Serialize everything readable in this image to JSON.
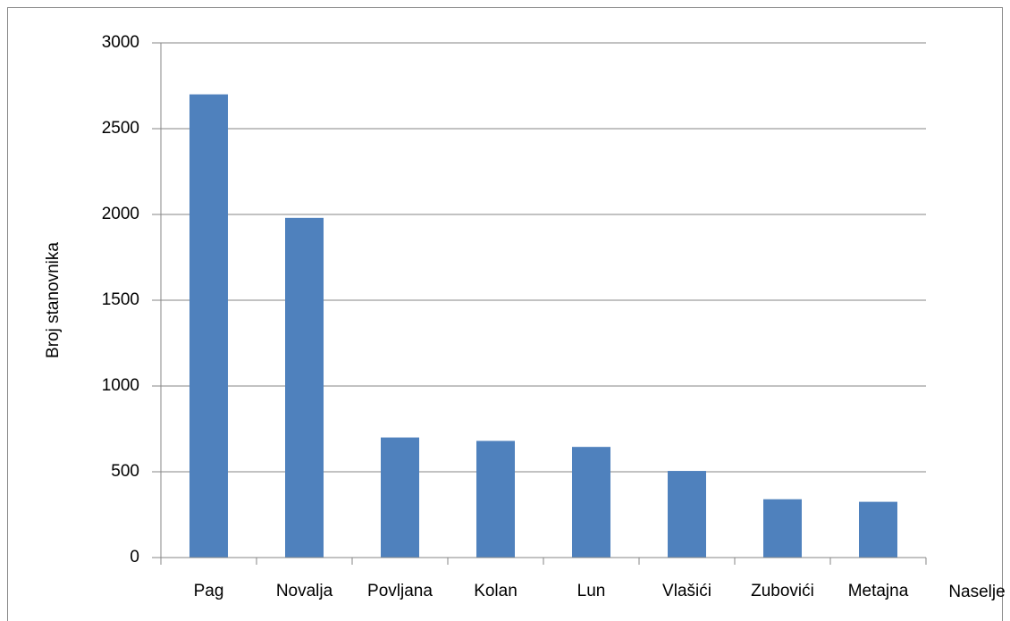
{
  "chart_data": {
    "type": "bar",
    "x_label": "Naselje",
    "y_label": "Broj stanovnika",
    "categories": [
      "Pag",
      "Novalja",
      "Povljana",
      "Kolan",
      "Lun",
      "Vlašići",
      "Zubovići",
      "Metajna"
    ],
    "values": [
      2700,
      1980,
      700,
      680,
      645,
      505,
      340,
      325
    ],
    "color": "#4f81bd",
    "ylim": [
      0,
      3000
    ],
    "yticks": [
      0,
      500,
      1000,
      1500,
      2000,
      2500,
      3000
    ],
    "grid": true
  }
}
